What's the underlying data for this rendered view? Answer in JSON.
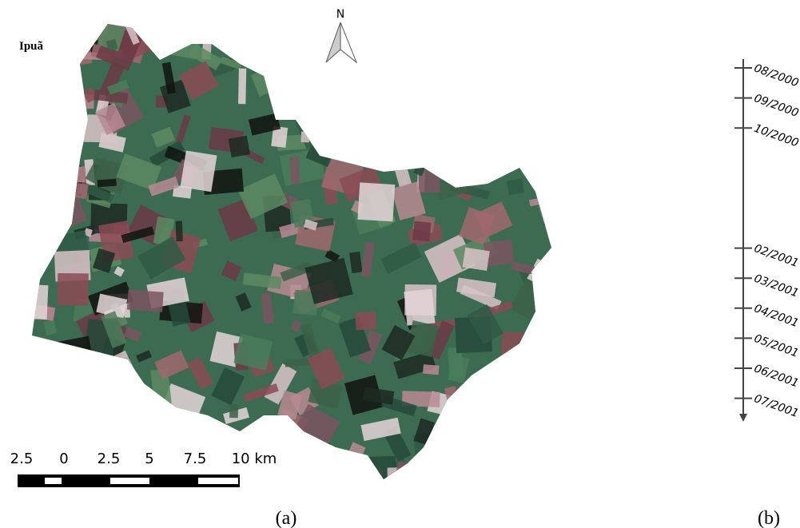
{
  "title": "Ipuã",
  "north_label": "N",
  "scale_labels": [
    "2.5",
    "0",
    "2.5",
    "5",
    "7.5",
    "10 km"
  ],
  "timeline": [
    "08/2000",
    "09/2000",
    "10/2000",
    "02/2001",
    "03/2001",
    "04/2001",
    "05/2001",
    "06/2001",
    "07/2001"
  ],
  "panel_labels": [
    "(a)",
    "(b)"
  ]
}
